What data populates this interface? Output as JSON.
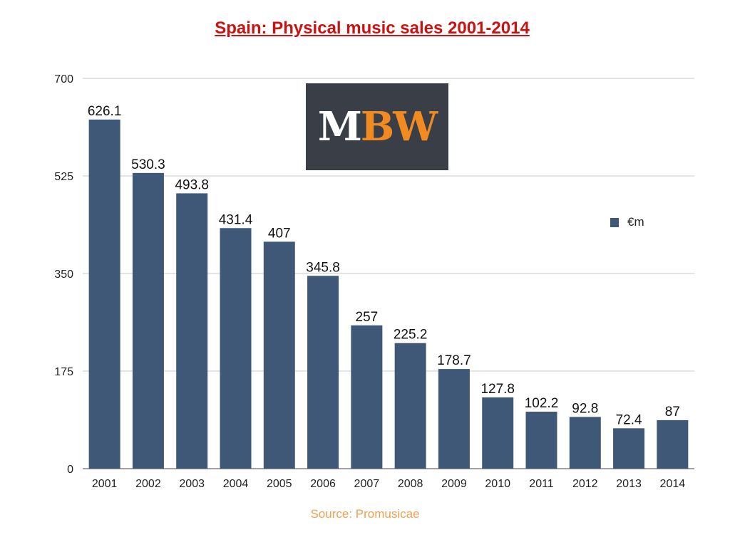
{
  "colors": {
    "title": "#cc1111",
    "bar": "#3f5878",
    "grid": "#c8c8c8",
    "axis": "#444444",
    "source": "#f0a050",
    "logo_bg": "#3a3f47",
    "logo_white": "#ffffff",
    "logo_orange": "#f28a22"
  },
  "logo": {
    "left_text": "M",
    "right_text": "BW"
  },
  "source_text": "Source: Promusicae",
  "chart_data": {
    "type": "bar",
    "title": "Spain: Physical music sales 2001-2014",
    "xlabel": "",
    "ylabel": "",
    "ylim": [
      0,
      700
    ],
    "yticks": [
      0,
      175,
      350,
      525,
      700
    ],
    "grid": true,
    "legend_position": "right",
    "categories": [
      "2001",
      "2002",
      "2003",
      "2004",
      "2005",
      "2006",
      "2007",
      "2008",
      "2009",
      "2010",
      "2011",
      "2012",
      "2013",
      "2014"
    ],
    "series": [
      {
        "name": "€m",
        "values": [
          626.1,
          530.3,
          493.8,
          431.4,
          407,
          345.8,
          257,
          225.2,
          178.7,
          127.8,
          102.2,
          92.8,
          72.4,
          87
        ],
        "labels": [
          "626.1",
          "530.3",
          "493.8",
          "431.4",
          "407",
          "345.8",
          "257",
          "225.2",
          "178.7",
          "127.8",
          "102.2",
          "92.8",
          "72.4",
          "87"
        ]
      }
    ]
  }
}
